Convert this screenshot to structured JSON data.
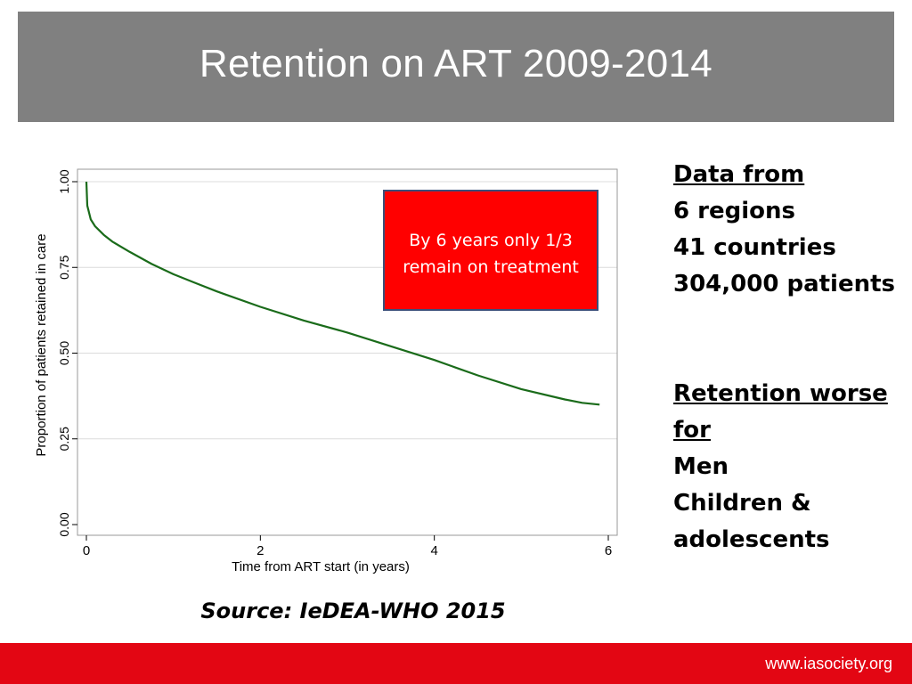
{
  "slide": {
    "title": "Retention on ART 2009-2014",
    "callout": "By 6 years only 1/3 remain on treatment",
    "side_panel": {
      "block1": [
        "Data from ",
        "6 regions",
        "41 countries",
        "304,000 patients"
      ],
      "block2_heading": [
        "Retention worse",
        "for"
      ],
      "block2_items": [
        "Men",
        "Children &",
        "adolescents"
      ]
    },
    "source": "Source: IeDEA-WHO 2015",
    "footer_url": "www.iasociety.org"
  },
  "colors": {
    "title_bar": "#808080",
    "callout_bg": "#ff0000",
    "curve": "#1a6b1a",
    "footer_bar": "#e30613"
  },
  "chart_data": {
    "type": "line",
    "title": "",
    "xlabel": "Time from ART start (in years)",
    "ylabel": "Proportion of patients retained in care",
    "xlim": [
      0,
      6
    ],
    "ylim": [
      0,
      1
    ],
    "x_ticks": [
      0,
      2,
      4,
      6
    ],
    "x_tick_labels": [
      "0",
      "2",
      "4",
      "6"
    ],
    "y_ticks": [
      0,
      0.25,
      0.5,
      0.75,
      1
    ],
    "y_tick_labels": [
      "0.00",
      "0.25",
      "0.50",
      "0.75",
      "1.00"
    ],
    "grid": "horizontal",
    "legend": "none",
    "series": [
      {
        "x": [
          0,
          0.01,
          0.02,
          0.05,
          0.1,
          0.2,
          0.3,
          0.5,
          0.75,
          1.0,
          1.25,
          1.5,
          2.0,
          2.5,
          3.0,
          3.5,
          4.0,
          4.5,
          5.0,
          5.5,
          5.7,
          5.9
        ],
        "y": [
          1.0,
          0.93,
          0.92,
          0.89,
          0.87,
          0.845,
          0.825,
          0.795,
          0.76,
          0.73,
          0.705,
          0.68,
          0.635,
          0.595,
          0.56,
          0.52,
          0.48,
          0.435,
          0.395,
          0.365,
          0.355,
          0.35
        ]
      }
    ]
  }
}
